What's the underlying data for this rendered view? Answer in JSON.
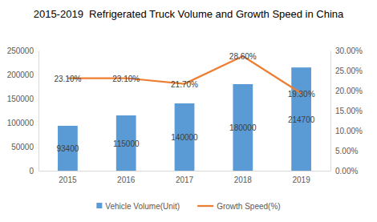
{
  "chart_data": {
    "type": "bar",
    "title": "2015-2019  Refrigerated Truck Volume and Growth Speed in China",
    "categories": [
      "2015",
      "2016",
      "2017",
      "2018",
      "2019"
    ],
    "series": [
      {
        "name": "Vehicle Volume(Unit)",
        "type": "bar",
        "color": "#5b9bd5",
        "values": [
          93400,
          115000,
          140000,
          180000,
          214700
        ]
      },
      {
        "name": "Growth Speed(%)",
        "type": "line",
        "color": "#ed7d31",
        "axis": "y2",
        "values": [
          23.1,
          23.1,
          21.7,
          28.6,
          19.3
        ],
        "value_labels": [
          "23.10%",
          "23.10%",
          "21.70%",
          "28.60%",
          "19.30%"
        ]
      }
    ],
    "ylim": [
      0,
      250000
    ],
    "yticks": [
      0,
      50000,
      100000,
      150000,
      200000,
      250000
    ],
    "y2lim": [
      0,
      30
    ],
    "y2ticks": [
      {
        "value": 0,
        "label": "0.00%"
      },
      {
        "value": 5,
        "label": "5.00%"
      },
      {
        "value": 10,
        "label": "10.00%"
      },
      {
        "value": 15,
        "label": "15.00%"
      },
      {
        "value": 20,
        "label": "20.00%"
      },
      {
        "value": 25,
        "label": "25.00%"
      },
      {
        "value": 30,
        "label": "30.00%"
      }
    ],
    "grid": false,
    "legend": "bottom",
    "data_labels": true
  }
}
